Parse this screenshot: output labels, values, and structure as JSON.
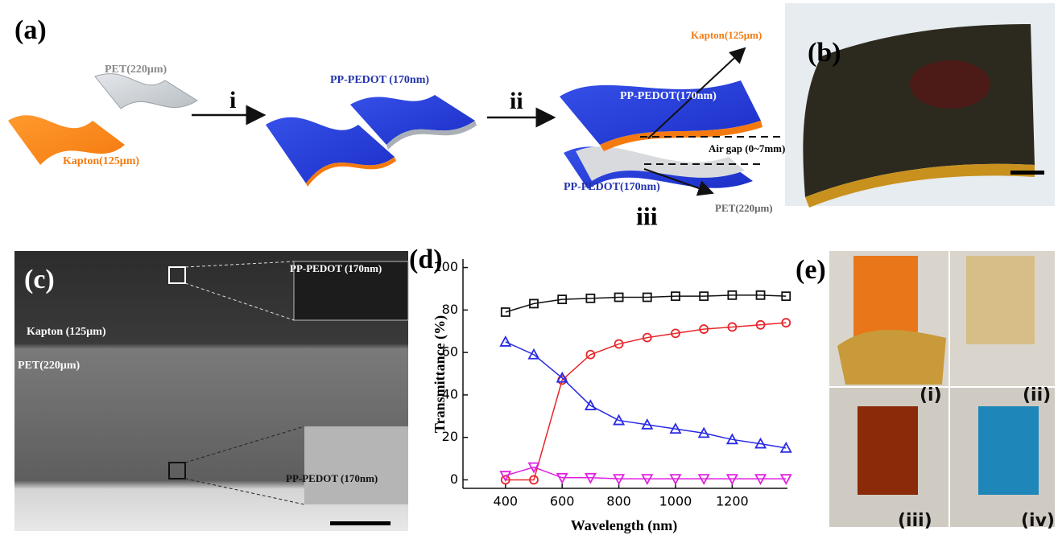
{
  "panel_a": {
    "label": "(a)",
    "pet": "PET(220μm)",
    "kapton": "Kapton(125μm)",
    "step_1": "i",
    "pp_pedot": "PP-PEDOT (170nm)",
    "step_2": "ii",
    "stack_kapton": "Kapton(125μm)",
    "stack_pedot_top": "PP-PEDOT(170nm)",
    "air_gap": "Air gap (0~7mm)",
    "stack_pedot_bottom": "PP-PEDOT(170nm)",
    "stack_pet": "PET(220μm)",
    "step_3": "iii"
  },
  "panel_b": {
    "label": "(b)"
  },
  "panel_c": {
    "label": "(c)",
    "inset_top": "PP-PEDOT (170nm)",
    "kapton": "Kapton (125μm)",
    "pet": "PET(220μm)",
    "inset_bottom": "PP-PEDOT (170nm)"
  },
  "chart_data": {
    "type": "line",
    "label": "(d)",
    "xlabel": "Wavelength (nm)",
    "ylabel": "Transmittance (%)",
    "x": [
      400,
      500,
      600,
      700,
      800,
      900,
      1000,
      1100,
      1200,
      1300,
      1390
    ],
    "series": [
      {
        "color": "#111111",
        "marker": "square",
        "values": [
          79,
          83,
          85,
          85.5,
          86,
          86,
          86.5,
          86.5,
          87,
          87,
          86.5
        ]
      },
      {
        "color": "#e8262a",
        "marker": "circle",
        "values": [
          0,
          0,
          47,
          59,
          64,
          67,
          69,
          71,
          72,
          73,
          74
        ]
      },
      {
        "color": "#2a2ae6",
        "marker": "triangle-up",
        "values": [
          65,
          59,
          48,
          35,
          28,
          26,
          24,
          22,
          19,
          17,
          15
        ]
      },
      {
        "color": "#e020e0",
        "marker": "triangle-down",
        "values": [
          2,
          6,
          1,
          1,
          0.5,
          0.5,
          0.5,
          0.5,
          0.5,
          0.5,
          0.5
        ]
      }
    ],
    "xlim": [
      250,
      1395
    ],
    "ylim": [
      -4,
      104
    ],
    "xticks": [
      400,
      600,
      800,
      1000,
      1200
    ],
    "yticks": [
      0,
      20,
      40,
      60,
      80,
      100
    ]
  },
  "panel_e": {
    "label": "(e)",
    "photos": [
      "(i)",
      "(ii)",
      "(iii)",
      "(iv)"
    ]
  }
}
